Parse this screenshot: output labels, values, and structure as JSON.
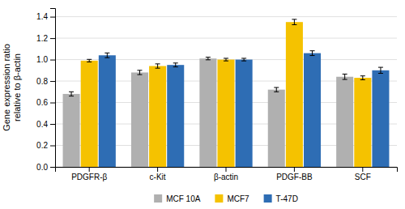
{
  "chart_data": {
    "type": "bar",
    "categories": [
      "PDGFR-β",
      "c-Kit",
      "β-actin",
      "PDGF-BB",
      "SCF"
    ],
    "series": [
      {
        "name": "MCF 10A",
        "color": "#b0b0b0",
        "values": [
          0.68,
          0.88,
          1.01,
          0.72,
          0.84
        ],
        "errors": [
          0.02,
          0.02,
          0.012,
          0.02,
          0.025
        ]
      },
      {
        "name": "MCF7",
        "color": "#f5c200",
        "values": [
          0.99,
          0.94,
          1.0,
          1.35,
          0.83
        ],
        "errors": [
          0.012,
          0.02,
          0.012,
          0.025,
          0.018
        ]
      },
      {
        "name": "T-47D",
        "color": "#2e6db4",
        "values": [
          1.04,
          0.95,
          1.0,
          1.06,
          0.9
        ],
        "errors": [
          0.022,
          0.018,
          0.012,
          0.022,
          0.028
        ]
      }
    ],
    "ylabel": "Gene expression ratio\nrelative to β-actin",
    "ylim": [
      0.0,
      1.48
    ],
    "yticks": [
      {
        "value": 0.0,
        "label": "0.0"
      },
      0.2,
      0.4,
      0.6,
      0.8,
      {
        "value": 1.0,
        "label": "1.0"
      },
      1.2,
      1.4
    ],
    "grid": true,
    "legend": "bottom"
  }
}
